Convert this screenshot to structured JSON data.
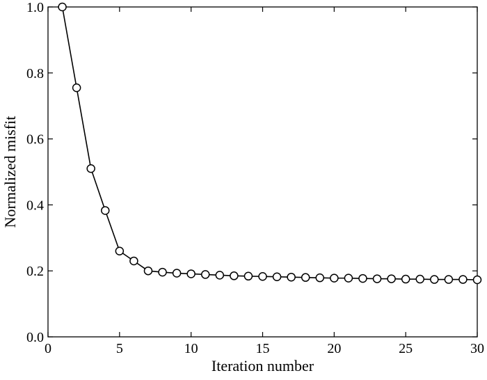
{
  "chart_data": {
    "type": "line",
    "xlabel": "Iteration number",
    "ylabel": "Normalized misfit",
    "xlim": [
      0,
      30
    ],
    "ylim": [
      0.0,
      1.0
    ],
    "xticks": [
      0,
      5,
      10,
      15,
      20,
      25,
      30
    ],
    "yticks": [
      0.0,
      0.2,
      0.4,
      0.6,
      0.8,
      1.0
    ],
    "xtick_labels": [
      "0",
      "5",
      "10",
      "15",
      "20",
      "25",
      "30"
    ],
    "ytick_labels": [
      "0.0",
      "0.2",
      "0.4",
      "0.6",
      "0.8",
      "1.0"
    ],
    "grid": false,
    "marker": "open-circle",
    "line_color": "#000000",
    "series": [
      {
        "x": [
          1,
          2,
          3,
          4,
          5,
          6,
          7,
          8,
          9,
          10,
          11,
          12,
          13,
          14,
          15,
          16,
          17,
          18,
          19,
          20,
          21,
          22,
          23,
          24,
          25,
          26,
          27,
          28,
          29,
          30
        ],
        "y": [
          1.0,
          0.755,
          0.51,
          0.383,
          0.26,
          0.23,
          0.2,
          0.196,
          0.193,
          0.191,
          0.189,
          0.187,
          0.185,
          0.184,
          0.183,
          0.182,
          0.181,
          0.18,
          0.179,
          0.178,
          0.178,
          0.177,
          0.176,
          0.176,
          0.175,
          0.175,
          0.174,
          0.174,
          0.174,
          0.173
        ]
      }
    ]
  }
}
